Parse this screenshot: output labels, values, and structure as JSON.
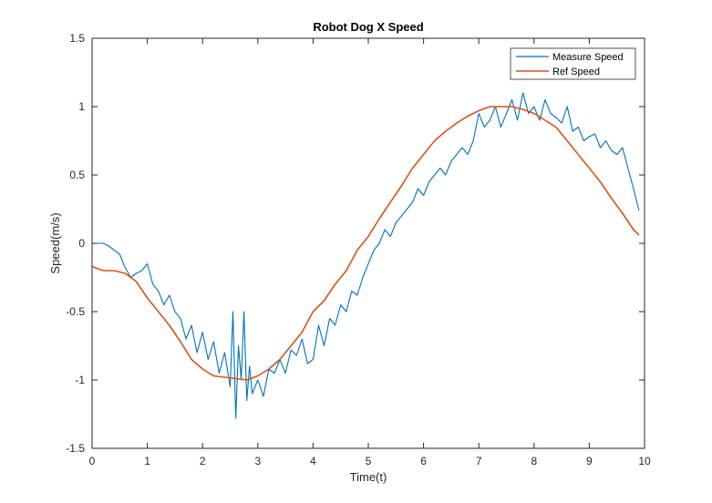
{
  "chart_data": {
    "type": "line",
    "title": "Robot Dog X Speed",
    "xlabel": "Time(t)",
    "ylabel": "Speed(m/s)",
    "xlim": [
      0,
      10
    ],
    "ylim": [
      -1.5,
      1.5
    ],
    "xticks": [
      0,
      1,
      2,
      3,
      4,
      5,
      6,
      7,
      8,
      9,
      10
    ],
    "yticks": [
      -1.5,
      -1,
      -0.5,
      0,
      0.5,
      1,
      1.5
    ],
    "grid": false,
    "legend_position": "top-right",
    "series": [
      {
        "name": "Measure Speed",
        "color": "#0072BD",
        "x": [
          0,
          0.1,
          0.2,
          0.3,
          0.4,
          0.5,
          0.6,
          0.7,
          0.8,
          0.9,
          1.0,
          1.1,
          1.2,
          1.3,
          1.4,
          1.5,
          1.6,
          1.7,
          1.8,
          1.9,
          2.0,
          2.1,
          2.2,
          2.3,
          2.4,
          2.5,
          2.55,
          2.6,
          2.65,
          2.7,
          2.75,
          2.8,
          2.85,
          2.9,
          3.0,
          3.1,
          3.2,
          3.3,
          3.4,
          3.5,
          3.6,
          3.7,
          3.8,
          3.9,
          4.0,
          4.1,
          4.2,
          4.3,
          4.4,
          4.5,
          4.6,
          4.7,
          4.8,
          4.9,
          5.0,
          5.1,
          5.2,
          5.3,
          5.4,
          5.5,
          5.6,
          5.7,
          5.8,
          5.9,
          6.0,
          6.1,
          6.2,
          6.3,
          6.4,
          6.5,
          6.6,
          6.7,
          6.8,
          6.9,
          7.0,
          7.1,
          7.2,
          7.3,
          7.4,
          7.5,
          7.6,
          7.7,
          7.8,
          7.9,
          8.0,
          8.1,
          8.2,
          8.3,
          8.4,
          8.5,
          8.6,
          8.7,
          8.8,
          8.9,
          9.0,
          9.1,
          9.2,
          9.3,
          9.4,
          9.5,
          9.6,
          9.7,
          9.8,
          9.9
        ],
        "y": [
          0.0,
          0.0,
          0.0,
          -0.02,
          -0.05,
          -0.08,
          -0.18,
          -0.25,
          -0.22,
          -0.2,
          -0.15,
          -0.3,
          -0.35,
          -0.45,
          -0.38,
          -0.5,
          -0.55,
          -0.7,
          -0.6,
          -0.8,
          -0.65,
          -0.85,
          -0.72,
          -0.95,
          -0.8,
          -1.05,
          -0.5,
          -1.28,
          -0.75,
          -1.0,
          -0.5,
          -1.15,
          -0.9,
          -1.1,
          -1.0,
          -1.12,
          -0.92,
          -0.95,
          -0.85,
          -0.95,
          -0.78,
          -0.82,
          -0.7,
          -0.88,
          -0.85,
          -0.6,
          -0.75,
          -0.55,
          -0.6,
          -0.45,
          -0.5,
          -0.35,
          -0.38,
          -0.25,
          -0.15,
          -0.05,
          0.0,
          0.1,
          0.05,
          0.15,
          0.2,
          0.25,
          0.3,
          0.4,
          0.35,
          0.45,
          0.5,
          0.55,
          0.5,
          0.6,
          0.65,
          0.7,
          0.65,
          0.75,
          0.95,
          0.85,
          0.9,
          1.0,
          0.85,
          0.95,
          1.05,
          0.9,
          1.1,
          0.95,
          1.0,
          0.9,
          1.05,
          0.95,
          0.92,
          0.88,
          1.0,
          0.82,
          0.85,
          0.75,
          0.78,
          0.8,
          0.7,
          0.75,
          0.68,
          0.65,
          0.7,
          0.55,
          0.4,
          0.24
        ]
      },
      {
        "name": "Ref Speed",
        "color": "#D95319",
        "x": [
          0,
          0.2,
          0.4,
          0.6,
          0.8,
          1.0,
          1.2,
          1.4,
          1.6,
          1.8,
          2.0,
          2.2,
          2.4,
          2.6,
          2.8,
          3.0,
          3.2,
          3.4,
          3.6,
          3.8,
          4.0,
          4.2,
          4.4,
          4.6,
          4.8,
          5.0,
          5.2,
          5.4,
          5.6,
          5.8,
          6.0,
          6.2,
          6.4,
          6.6,
          6.8,
          7.0,
          7.2,
          7.4,
          7.6,
          7.8,
          8.0,
          8.2,
          8.4,
          8.6,
          8.8,
          9.0,
          9.2,
          9.4,
          9.6,
          9.8,
          9.9
        ],
        "y": [
          -0.17,
          -0.2,
          -0.2,
          -0.22,
          -0.28,
          -0.4,
          -0.5,
          -0.6,
          -0.72,
          -0.85,
          -0.92,
          -0.97,
          -0.98,
          -0.99,
          -1.0,
          -0.97,
          -0.92,
          -0.85,
          -0.75,
          -0.65,
          -0.5,
          -0.42,
          -0.3,
          -0.2,
          -0.05,
          0.05,
          0.18,
          0.3,
          0.42,
          0.55,
          0.65,
          0.75,
          0.82,
          0.88,
          0.93,
          0.97,
          1.0,
          1.0,
          1.0,
          0.98,
          0.95,
          0.9,
          0.85,
          0.75,
          0.65,
          0.55,
          0.45,
          0.33,
          0.22,
          0.1,
          0.06
        ]
      }
    ]
  }
}
